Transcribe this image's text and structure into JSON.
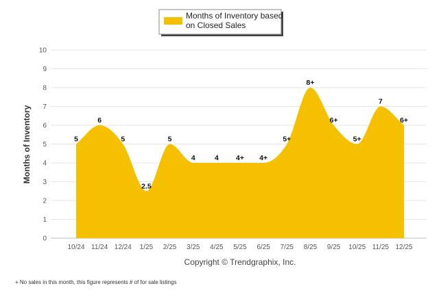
{
  "chart_data": {
    "type": "area",
    "title": "",
    "xlabel": "",
    "ylabel": "Months of Inventory",
    "ylim": [
      0,
      10
    ],
    "yticks": [
      0,
      1,
      2,
      3,
      4,
      5,
      6,
      7,
      8,
      9,
      10
    ],
    "grid": true,
    "legend_position": "top-center",
    "categories": [
      "10/24",
      "11/24",
      "12/24",
      "1/25",
      "2/25",
      "3/25",
      "4/25",
      "5/25",
      "6/25",
      "7/25",
      "8/25",
      "9/25",
      "10/25",
      "11/25",
      "12/25"
    ],
    "series": [
      {
        "name": "Months of Inventory based on Closed Sales",
        "legend_lines": [
          "Months of Inventory based",
          "on Closed Sales"
        ],
        "color": "#F5C000",
        "values": [
          5,
          6,
          5,
          2.5,
          5,
          4,
          4,
          4,
          4,
          5,
          8,
          6,
          5,
          7,
          6
        ],
        "labels": [
          "5",
          "6",
          "5",
          "2.5",
          "5",
          "4",
          "4",
          "4+",
          "4+",
          "5+",
          "8+",
          "6+",
          "5+",
          "7",
          "6+"
        ]
      }
    ],
    "copyright": "Copyright © Trendgraphix, Inc.",
    "footnote": "+  No sales in this month, this figure represents # of for sale listings"
  }
}
